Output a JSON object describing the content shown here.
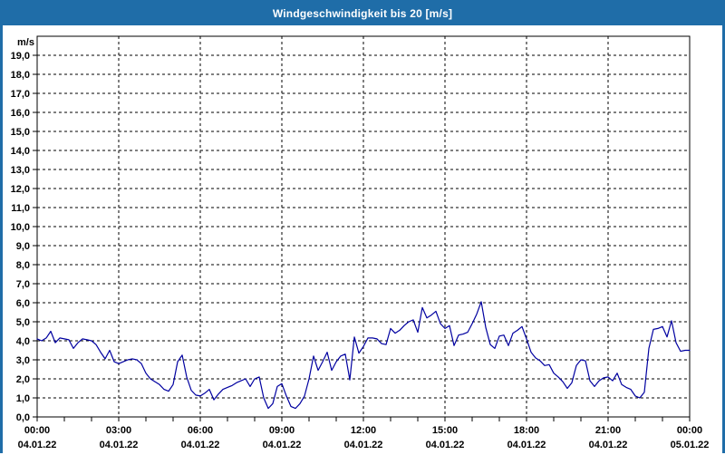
{
  "window": {
    "title": "Windgeschwindigkeit bis 20 [m/s]",
    "frame_color": "#1f6da8",
    "title_text_color": "#ffffff"
  },
  "chart_data": {
    "type": "line",
    "title": "Windgeschwindigkeit bis 20 [m/s]",
    "ylabel": "m/s",
    "xlabel": "",
    "ylim": [
      0,
      20
    ],
    "y_tick_step": 1.0,
    "y_tick_labels": [
      "0,0",
      "1,0",
      "2,0",
      "3,0",
      "4,0",
      "5,0",
      "6,0",
      "7,0",
      "8,0",
      "9,0",
      "10,0",
      "11,0",
      "12,0",
      "13,0",
      "14,0",
      "15,0",
      "16,0",
      "17,0",
      "18,0",
      "19,0"
    ],
    "x_hours_range": [
      0,
      24
    ],
    "x_minor_tick_hours": 1,
    "x_major_tick_hours": 3,
    "x_major_ticks": [
      {
        "hour": 0,
        "time": "00:00",
        "date": "04.01.22"
      },
      {
        "hour": 3,
        "time": "03:00",
        "date": "04.01.22"
      },
      {
        "hour": 6,
        "time": "06:00",
        "date": "04.01.22"
      },
      {
        "hour": 9,
        "time": "09:00",
        "date": "04.01.22"
      },
      {
        "hour": 12,
        "time": "12:00",
        "date": "04.01.22"
      },
      {
        "hour": 15,
        "time": "15:00",
        "date": "04.01.22"
      },
      {
        "hour": 18,
        "time": "18:00",
        "date": "04.01.22"
      },
      {
        "hour": 21,
        "time": "21:00",
        "date": "04.01.22"
      },
      {
        "hour": 24,
        "time": "00:00",
        "date": "05.01.22"
      }
    ],
    "grid": "dashed",
    "legend": "none",
    "line_color": "#0000a0",
    "grid_color": "#000000",
    "axis_text_color": "#000000",
    "plot_background": "#ffffff",
    "series": [
      {
        "name": "Windgeschwindigkeit",
        "unit": "m/s",
        "start": "00:00",
        "interval_minutes": 10,
        "values": [
          4.1,
          4.0,
          4.15,
          4.5,
          3.9,
          4.15,
          4.1,
          4.05,
          3.6,
          3.9,
          4.1,
          4.05,
          4.0,
          3.8,
          3.4,
          3.05,
          3.5,
          2.9,
          2.8,
          2.9,
          3.0,
          3.05,
          3.0,
          2.8,
          2.3,
          2.0,
          1.85,
          1.7,
          1.45,
          1.35,
          1.7,
          2.9,
          3.25,
          2.1,
          1.4,
          1.15,
          1.1,
          1.25,
          1.45,
          0.9,
          1.2,
          1.45,
          1.55,
          1.65,
          1.8,
          1.9,
          2.0,
          1.6,
          2.0,
          2.1,
          1.0,
          0.45,
          0.7,
          1.6,
          1.75,
          1.1,
          0.55,
          0.45,
          0.7,
          1.1,
          2.0,
          3.2,
          2.45,
          2.9,
          3.4,
          2.45,
          2.9,
          3.2,
          3.3,
          1.95,
          4.2,
          3.35,
          3.7,
          4.15,
          4.15,
          4.1,
          3.85,
          3.8,
          4.65,
          4.4,
          4.55,
          4.8,
          5.0,
          5.1,
          4.45,
          5.75,
          5.2,
          5.35,
          5.55,
          4.9,
          4.65,
          4.8,
          3.75,
          4.3,
          4.35,
          4.45,
          4.9,
          5.4,
          6.05,
          4.7,
          3.8,
          3.6,
          4.25,
          4.3,
          3.75,
          4.4,
          4.55,
          4.75,
          4.1,
          3.4,
          3.1,
          2.95,
          2.7,
          2.75,
          2.3,
          2.1,
          1.85,
          1.5,
          1.8,
          2.7,
          3.0,
          2.95,
          1.9,
          1.6,
          1.9,
          2.05,
          2.1,
          1.9,
          2.3,
          1.7,
          1.55,
          1.45,
          1.1,
          1.0,
          1.3,
          3.6,
          4.6,
          4.65,
          4.75,
          4.2,
          5.05,
          3.9,
          3.45,
          3.5,
          3.5
        ]
      }
    ]
  }
}
